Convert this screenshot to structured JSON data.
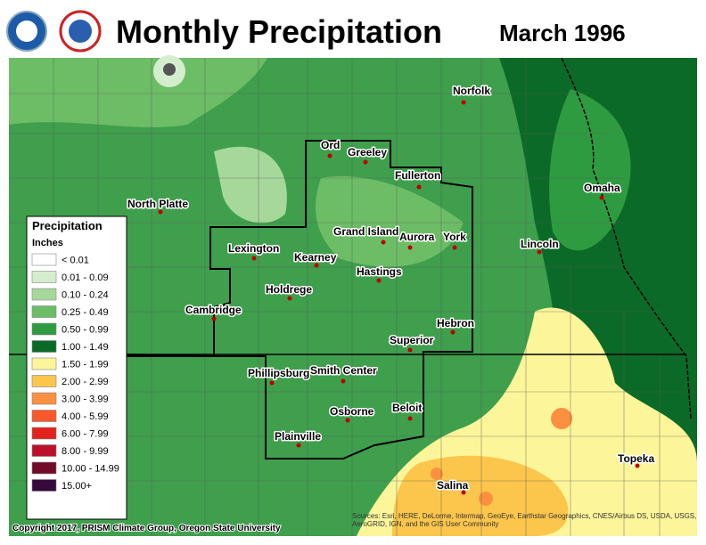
{
  "header": {
    "title": "Monthly Precipitation",
    "date": "March 1996"
  },
  "legend": {
    "title": "Precipitation",
    "units": "Inches",
    "items": [
      {
        "label": "< 0.01",
        "color": "#ffffff"
      },
      {
        "label": "0.01 - 0.09",
        "color": "#d4eecd"
      },
      {
        "label": "0.10 - 0.24",
        "color": "#a6d89b"
      },
      {
        "label": "0.25 - 0.49",
        "color": "#6dbd67"
      },
      {
        "label": "0.50 - 0.99",
        "color": "#2f9b40"
      },
      {
        "label": "1.00 - 1.49",
        "color": "#0b6a27"
      },
      {
        "label": "1.50 - 1.99",
        "color": "#fcf59a"
      },
      {
        "label": "2.00 - 2.99",
        "color": "#fcc64c"
      },
      {
        "label": "3.00 - 3.99",
        "color": "#fb9140"
      },
      {
        "label": "4.00 - 5.99",
        "color": "#f9582a"
      },
      {
        "label": "6.00 - 7.99",
        "color": "#e4221c"
      },
      {
        "label": "8.00 - 9.99",
        "color": "#bd0f2c"
      },
      {
        "label": "10.00 - 14.99",
        "color": "#720a29"
      },
      {
        "label": "15.00+",
        "color": "#36093b"
      }
    ]
  },
  "cities": [
    "Norfolk",
    "Ord",
    "Greeley",
    "Fullerton",
    "North Platte",
    "Omaha",
    "Grand Island",
    "Aurora",
    "York",
    "Lincoln",
    "Lexington",
    "Kearney",
    "Hastings",
    "Holdrege",
    "Cambridge",
    "Hebron",
    "Superior",
    "Phillipsburg",
    "Smith Center",
    "Beloit",
    "Osborne",
    "Plainville",
    "Topeka",
    "Salina"
  ],
  "copyright": "Copyright 2017, PRISM Climate Group, Oregon State University",
  "attribution": "Sources: Esri, HERE, DeLorme, Intermap, GeoEye, Earthstar Geographics, CNES/Airbus DS, USDA, USGS, AeroGRID, IGN, and the GIS User Community"
}
